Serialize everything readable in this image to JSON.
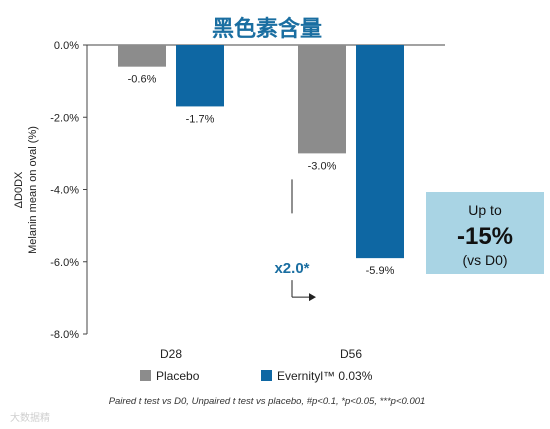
{
  "chart_data": {
    "type": "bar",
    "title": "黑色素含量",
    "ylabel_lines": [
      "ΔD0DX",
      "Melanin mean on oval (%)"
    ],
    "categories": [
      "D28",
      "D56"
    ],
    "series": [
      {
        "name": "Placebo",
        "color": "#8c8c8c",
        "values": [
          -0.6,
          -3.0
        ],
        "labels": [
          "-0.6%",
          "-3.0%"
        ]
      },
      {
        "name": "Evernityl™ 0.03%",
        "color": "#0e67a3",
        "values": [
          -1.7,
          -5.9
        ],
        "labels": [
          "-1.7%",
          "-5.9%"
        ]
      }
    ],
    "ylim": [
      -8.0,
      0.0
    ],
    "yticks": [
      0.0,
      -2.0,
      -4.0,
      -6.0,
      -8.0
    ],
    "ytick_labels": [
      "0.0%",
      "-2.0%",
      "-4.0%",
      "-6.0%",
      "-8.0%"
    ],
    "grid": false,
    "legend_position": "bottom",
    "annotation": {
      "multiplier": "x2.0*"
    },
    "callout": {
      "line1": "Up to",
      "line2": "-15%",
      "line3": "(vs D0)",
      "color": "#a9d4e4"
    },
    "footnote": "Paired t test vs D0, Unpaired t test vs placebo, #p<0.1, *p<0.05, ***p<0.001",
    "watermark": "大数据精"
  }
}
